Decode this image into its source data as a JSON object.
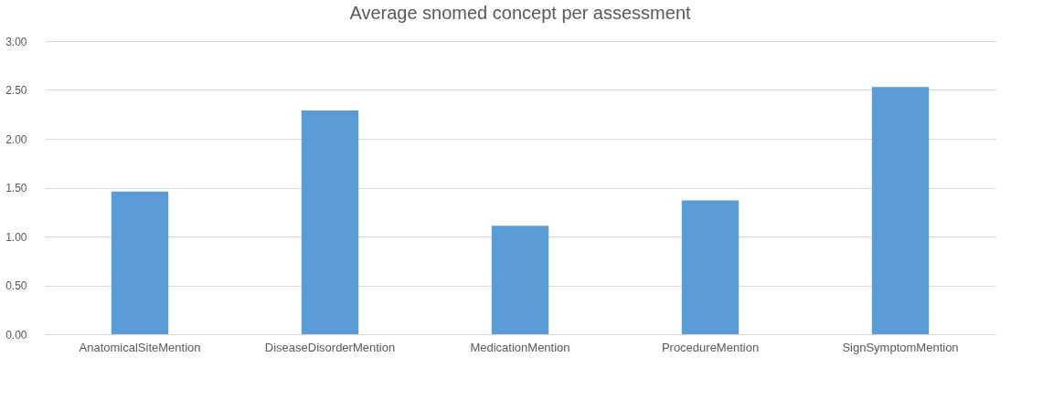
{
  "chart_data": {
    "type": "bar",
    "title": "Average snomed concept per assessment",
    "categories": [
      "AnatomicalSiteMention",
      "DiseaseDisorderMention",
      "MedicationMention",
      "ProcedureMention",
      "SignSymptomMention"
    ],
    "values": [
      1.46,
      2.29,
      1.11,
      1.37,
      2.53
    ],
    "color": "#5b9bd5",
    "ylim": [
      0,
      3
    ],
    "yticks": [
      {
        "value": 0,
        "label": "0.00"
      },
      {
        "value": 0.5,
        "label": "0.50"
      },
      {
        "value": 1,
        "label": "1.00"
      },
      {
        "value": 1.5,
        "label": "1.50"
      },
      {
        "value": 2,
        "label": "2.00"
      },
      {
        "value": 2.5,
        "label": "2.50"
      },
      {
        "value": 3,
        "label": "3.00"
      }
    ],
    "grid": "y"
  }
}
